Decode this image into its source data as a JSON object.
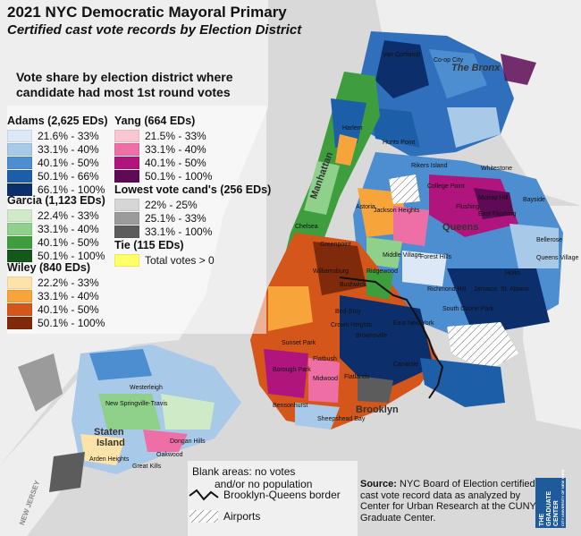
{
  "title": "2021 NYC Democratic Mayoral Primary",
  "subtitle": "Certified cast vote records by Election District",
  "heading": "Vote share by election district where candidate had most 1st round votes",
  "legends": {
    "adams": {
      "title": "Adams (2,625 EDs)",
      "items": [
        {
          "label": "21.6% - 33%",
          "color": "#dce8f5"
        },
        {
          "label": "33.1% - 40%",
          "color": "#a9c9e8"
        },
        {
          "label": "40.1% - 50%",
          "color": "#4d8ed0"
        },
        {
          "label": "50.1% - 66%",
          "color": "#1d5ea8"
        },
        {
          "label": "66.1% - 100%",
          "color": "#0c2f6b"
        }
      ]
    },
    "garcia": {
      "title": "Garcia (1,123 EDs)",
      "items": [
        {
          "label": "22.4% - 33%",
          "color": "#cfeac7"
        },
        {
          "label": "33.1% - 40%",
          "color": "#8fd08a"
        },
        {
          "label": "40.1% - 50%",
          "color": "#3e9e3e"
        },
        {
          "label": "50.1% - 100%",
          "color": "#14581c"
        }
      ]
    },
    "wiley": {
      "title": "Wiley (840 EDs)",
      "items": [
        {
          "label": "22.2% - 33%",
          "color": "#fde3a7"
        },
        {
          "label": "33.1% - 40%",
          "color": "#f7a43b"
        },
        {
          "label": "40.1% - 50%",
          "color": "#d4561a"
        },
        {
          "label": "50.1% - 100%",
          "color": "#7e2a0b"
        }
      ]
    },
    "yang": {
      "title": "Yang (664 EDs)",
      "items": [
        {
          "label": "21.5% - 33%",
          "color": "#f9c7d2"
        },
        {
          "label": "33.1% - 40%",
          "color": "#ee6fa5"
        },
        {
          "label": "40.1% - 50%",
          "color": "#b0157e"
        },
        {
          "label": "50.1% - 100%",
          "color": "#5e0a55"
        }
      ]
    },
    "lowest": {
      "title": "Lowest vote cand's (256 EDs)",
      "items": [
        {
          "label": "22% - 25%",
          "color": "#d6d6d6"
        },
        {
          "label": "25.1% - 33%",
          "color": "#9b9b9b"
        },
        {
          "label": "33.1% - 100%",
          "color": "#5c5c5c"
        }
      ]
    },
    "tie": {
      "title": "Tie (115 EDs)",
      "items": [
        {
          "label": "Total votes > 0",
          "color": "#ffff66"
        }
      ]
    }
  },
  "notes": {
    "blank": "Blank areas: no votes",
    "blank2": "and/or no population",
    "border": "Brooklyn-Queens border",
    "airports": "Airports"
  },
  "source": {
    "label": "Source:",
    "text": "NYC Board of Election certified cast vote record data as analyzed by Center for Urban Research at the CUNY Graduate Center."
  },
  "logo": {
    "line1": "THE",
    "line2": "GRADUATE",
    "line3": "CENTER",
    "line4": "CITY UNIVERSITY OF NEW YORK"
  },
  "boroughs": {
    "bronx": "The Bronx",
    "manhattan": "Manhattan",
    "queens": "Queens",
    "brooklyn": "Brooklyn",
    "staten": "Staten",
    "island": "Island",
    "nj": "NEW JERSEY"
  },
  "neighborhoods": [
    "Van Cortlandt",
    "Co-op City",
    "Hunts Point",
    "Rikers Island",
    "Whitestone",
    "College Point",
    "Murray Hill",
    "East Flushing",
    "Flushing",
    "Bayside",
    "Jackson Heights",
    "Astoria",
    "Middle Village",
    "Forest Hills",
    "Greenpoint",
    "Williamsburg",
    "Bushwick",
    "Ridgewood",
    "Bed-Stuy",
    "Crown Heights",
    "East New York",
    "Richmond Hill",
    "Jamaica",
    "St. Albans",
    "Hollis",
    "Queens Village",
    "Bellerose",
    "South Ozone Park",
    "Brownsville",
    "Canarsie",
    "Sunset Park",
    "Borough Park",
    "Midwood",
    "Flatlands",
    "Flatbush",
    "Bensonhurst",
    "Sheepshead Bay",
    "Westerleigh",
    "New Springville-Travis",
    "Arden Heights",
    "Great Kills",
    "Oakwood",
    "Dongan Hills",
    "Chelsea",
    "Harlem"
  ]
}
